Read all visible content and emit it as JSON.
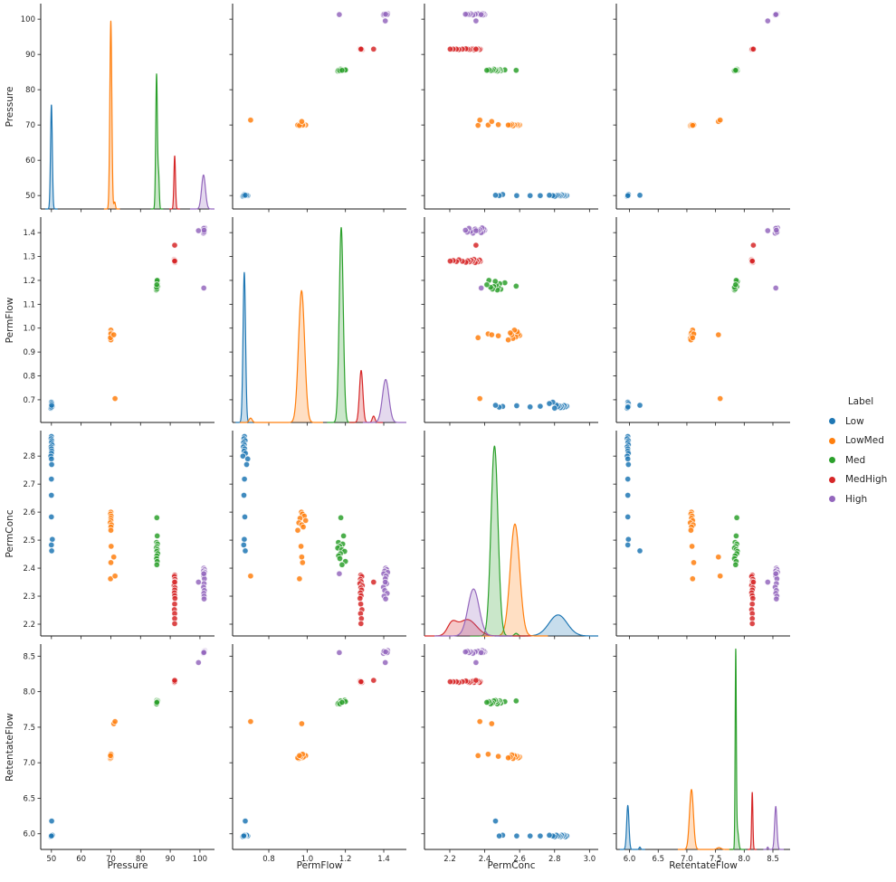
{
  "figure": {
    "background": "#ffffff"
  },
  "legend": {
    "title": "Label",
    "entries": [
      {
        "label": "Low",
        "color": "#1f77b4"
      },
      {
        "label": "LowMed",
        "color": "#ff7f0e"
      },
      {
        "label": "Med",
        "color": "#2ca02c"
      },
      {
        "label": "MedHigh",
        "color": "#d62728"
      },
      {
        "label": "High",
        "color": "#9467bd"
      }
    ]
  },
  "chart_data": {
    "type": "scatter",
    "subtype": "pairplot-scatter-matrix",
    "diagonal": "kde",
    "hue": "Label",
    "grid": false,
    "legend_position": "right-center",
    "variables": [
      "Pressure",
      "PermFlow",
      "PermConc",
      "RetentateFlow"
    ],
    "axes": [
      {
        "name": "Pressure",
        "col_range": [
          46.4,
          104.9
        ],
        "row_range": [
          46.2,
          104.4
        ],
        "col_ticks": {
          "values": [
            50,
            60,
            70,
            80,
            90,
            100
          ],
          "labels": [
            "50",
            "60",
            "70",
            "80",
            "90",
            "100"
          ]
        },
        "row_ticks": {
          "values": [
            50,
            60,
            70,
            80,
            90,
            100
          ],
          "labels": [
            "50",
            "60",
            "70",
            "80",
            "90",
            "100"
          ]
        }
      },
      {
        "name": "PermFlow",
        "col_range": [
          0.611,
          1.518
        ],
        "row_range": [
          0.605,
          1.465
        ],
        "col_ticks": {
          "values": [
            0.8,
            1.0,
            1.2,
            1.4
          ],
          "labels": [
            "0.8",
            "1.0",
            "1.2",
            "1.4"
          ]
        },
        "row_ticks": {
          "values": [
            0.7,
            0.8,
            0.9,
            1.0,
            1.1,
            1.2,
            1.3,
            1.4
          ],
          "labels": [
            "0.7",
            "0.8",
            "0.9",
            "1.0",
            "1.1",
            "1.2",
            "1.3",
            "1.4"
          ]
        }
      },
      {
        "name": "PermConc",
        "col_range": [
          2.055,
          3.05
        ],
        "row_range": [
          2.158,
          2.891
        ],
        "col_ticks": {
          "values": [
            2.2,
            2.4,
            2.6,
            2.8,
            3.0
          ],
          "labels": [
            "2.2",
            "2.4",
            "2.6",
            "2.8",
            "3.0"
          ]
        },
        "row_ticks": {
          "values": [
            2.2,
            2.3,
            2.4,
            2.5,
            2.6,
            2.7,
            2.8
          ],
          "labels": [
            "2.2",
            "2.3",
            "2.4",
            "2.5",
            "2.6",
            "2.7",
            "2.8"
          ]
        }
      },
      {
        "name": "RetentateFlow",
        "col_range": [
          5.77,
          8.8
        ],
        "row_range": [
          5.78,
          8.67
        ],
        "col_ticks": {
          "values": [
            6.0,
            6.5,
            7.0,
            7.5,
            8.0,
            8.5
          ],
          "labels": [
            "6.0",
            "6.5",
            "7.0",
            "7.5",
            "8.0",
            "8.5"
          ]
        },
        "row_ticks": {
          "values": [
            6.0,
            6.5,
            7.0,
            7.5,
            8.0,
            8.5
          ],
          "labels": [
            "6.0",
            "6.5",
            "7.0",
            "7.5",
            "8.0",
            "8.5"
          ]
        }
      }
    ],
    "series": [
      {
        "name": "Low",
        "color": "#1f77b4",
        "points": [
          [
            50.0,
            0.673,
            2.87,
            5.97
          ],
          [
            49.9,
            0.67,
            2.862,
            5.96
          ],
          [
            50.1,
            0.676,
            2.855,
            5.98
          ],
          [
            50.0,
            0.668,
            2.848,
            5.97
          ],
          [
            50.2,
            0.672,
            2.84,
            5.98
          ],
          [
            49.9,
            0.667,
            2.833,
            5.96
          ],
          [
            50.0,
            0.674,
            2.826,
            5.97
          ],
          [
            50.1,
            0.671,
            2.818,
            5.97
          ],
          [
            50.0,
            0.678,
            2.81,
            5.98
          ],
          [
            49.8,
            0.665,
            2.8,
            5.96
          ],
          [
            50.0,
            0.69,
            2.79,
            5.97
          ],
          [
            50.1,
            0.684,
            2.77,
            5.98
          ],
          [
            50.0,
            0.673,
            2.718,
            5.97
          ],
          [
            50.0,
            0.67,
            2.66,
            5.97
          ],
          [
            50.0,
            0.675,
            2.583,
            5.97
          ],
          [
            50.3,
            0.672,
            2.503,
            5.98
          ],
          [
            50.0,
            0.669,
            2.483,
            5.97
          ],
          [
            50.1,
            0.677,
            2.462,
            6.18
          ]
        ]
      },
      {
        "name": "LowMed",
        "color": "#ff7f0e",
        "points": [
          [
            70.0,
            0.97,
            2.6,
            7.08
          ],
          [
            69.9,
            0.975,
            2.593,
            7.07
          ],
          [
            70.1,
            0.985,
            2.586,
            7.09
          ],
          [
            70.0,
            0.963,
            2.578,
            7.08
          ],
          [
            70.0,
            0.992,
            2.57,
            7.1
          ],
          [
            69.8,
            0.957,
            2.562,
            7.06
          ],
          [
            70.2,
            0.972,
            2.555,
            7.11
          ],
          [
            70.0,
            0.98,
            2.547,
            7.08
          ],
          [
            70.0,
            0.951,
            2.535,
            7.07
          ],
          [
            70.1,
            0.968,
            2.478,
            7.09
          ],
          [
            70.0,
            0.976,
            2.42,
            7.12
          ],
          [
            69.9,
            0.96,
            2.362,
            7.1
          ],
          [
            71.0,
            0.972,
            2.44,
            7.55
          ],
          [
            71.4,
            0.705,
            2.372,
            7.58
          ]
        ]
      },
      {
        "name": "Med",
        "color": "#2ca02c",
        "points": [
          [
            85.5,
            1.176,
            2.58,
            7.87
          ],
          [
            85.6,
            1.19,
            2.515,
            7.86
          ],
          [
            85.4,
            1.163,
            2.492,
            7.84
          ],
          [
            85.7,
            1.186,
            2.486,
            7.87
          ],
          [
            85.5,
            1.17,
            2.478,
            7.85
          ],
          [
            85.3,
            1.16,
            2.472,
            7.83
          ],
          [
            85.6,
            1.181,
            2.466,
            7.86
          ],
          [
            85.5,
            1.196,
            2.46,
            7.88
          ],
          [
            85.8,
            1.174,
            2.452,
            7.87
          ],
          [
            85.5,
            1.164,
            2.444,
            7.84
          ],
          [
            85.4,
            1.171,
            2.434,
            7.83
          ],
          [
            85.6,
            1.2,
            2.424,
            7.86
          ],
          [
            85.5,
            1.182,
            2.412,
            7.85
          ]
        ]
      },
      {
        "name": "MedHigh",
        "color": "#d62728",
        "points": [
          [
            91.5,
            1.28,
            2.375,
            8.14
          ],
          [
            91.4,
            1.285,
            2.37,
            8.13
          ],
          [
            91.6,
            1.278,
            2.36,
            8.15
          ],
          [
            91.5,
            1.282,
            2.352,
            8.14
          ],
          [
            91.5,
            1.275,
            2.345,
            8.14
          ],
          [
            91.3,
            1.288,
            2.338,
            8.13
          ],
          [
            91.6,
            1.28,
            2.33,
            8.15
          ],
          [
            91.5,
            1.284,
            2.322,
            8.14
          ],
          [
            91.4,
            1.278,
            2.312,
            8.13
          ],
          [
            91.5,
            1.282,
            2.302,
            8.14
          ],
          [
            91.6,
            1.276,
            2.292,
            8.15
          ],
          [
            91.5,
            1.28,
            2.272,
            8.14
          ],
          [
            91.4,
            1.286,
            2.252,
            8.13
          ],
          [
            91.5,
            1.279,
            2.238,
            8.14
          ],
          [
            91.5,
            1.283,
            2.22,
            8.14
          ],
          [
            91.5,
            1.281,
            2.202,
            8.14
          ],
          [
            91.5,
            1.347,
            2.35,
            8.16
          ]
        ]
      },
      {
        "name": "High",
        "color": "#9467bd",
        "points": [
          [
            101.3,
            1.41,
            2.4,
            8.56
          ],
          [
            101.5,
            1.415,
            2.395,
            8.57
          ],
          [
            101.2,
            1.405,
            2.39,
            8.55
          ],
          [
            101.6,
            1.42,
            2.385,
            8.58
          ],
          [
            101.4,
            1.4,
            2.38,
            8.56
          ],
          [
            101.3,
            1.412,
            2.372,
            8.55
          ],
          [
            101.5,
            1.408,
            2.362,
            8.57
          ],
          [
            101.4,
            1.415,
            2.345,
            8.56
          ],
          [
            101.2,
            1.398,
            2.332,
            8.54
          ],
          [
            101.5,
            1.405,
            2.32,
            8.56
          ],
          [
            101.3,
            1.418,
            2.31,
            8.55
          ],
          [
            101.4,
            1.402,
            2.3,
            8.57
          ],
          [
            101.4,
            1.41,
            2.29,
            8.56
          ],
          [
            99.5,
            1.408,
            2.35,
            8.41
          ],
          [
            101.3,
            1.168,
            2.38,
            8.55
          ]
        ]
      }
    ],
    "kde": {
      "Pressure": {
        "Low": [
          {
            "c": 50.0,
            "s": 0.3,
            "h": 0.52
          }
        ],
        "LowMed": [
          {
            "c": 70.0,
            "s": 0.33,
            "h": 0.94
          },
          {
            "c": 71.3,
            "s": 0.25,
            "h": 0.035
          }
        ],
        "Med": [
          {
            "c": 85.4,
            "s": 0.28,
            "h": 0.675
          },
          {
            "c": 86.1,
            "s": 0.22,
            "h": 0.16
          }
        ],
        "MedHigh": [
          {
            "c": 91.5,
            "s": 0.26,
            "h": 0.265
          }
        ],
        "High": [
          {
            "c": 101.2,
            "s": 0.65,
            "h": 0.17
          }
        ]
      },
      "PermFlow": {
        "Low": [
          {
            "c": 0.672,
            "s": 0.0065,
            "h": 0.75
          }
        ],
        "LowMed": [
          {
            "c": 0.971,
            "s": 0.016,
            "h": 0.66
          },
          {
            "c": 0.705,
            "s": 0.008,
            "h": 0.022
          }
        ],
        "Med": [
          {
            "c": 1.178,
            "s": 0.0105,
            "h": 0.975
          }
        ],
        "MedHigh": [
          {
            "c": 1.282,
            "s": 0.009,
            "h": 0.26
          },
          {
            "c": 1.347,
            "s": 0.007,
            "h": 0.032
          }
        ],
        "High": [
          {
            "c": 1.41,
            "s": 0.017,
            "h": 0.215
          }
        ]
      },
      "PermConc": {
        "Low": [
          {
            "c": 2.82,
            "s": 0.052,
            "h": 0.105
          }
        ],
        "LowMed": [
          {
            "c": 2.573,
            "s": 0.027,
            "h": 0.56
          }
        ],
        "Med": [
          {
            "c": 2.456,
            "s": 0.02,
            "h": 0.95
          },
          {
            "c": 2.58,
            "s": 0.01,
            "h": 0.013
          }
        ],
        "MedHigh": [
          {
            "c": 2.3,
            "s": 0.052,
            "h": 0.082
          },
          {
            "c": 2.212,
            "s": 0.026,
            "h": 0.055
          }
        ],
        "High": [
          {
            "c": 2.336,
            "s": 0.032,
            "h": 0.235
          }
        ]
      },
      "RetentateFlow": {
        "Low": [
          {
            "c": 5.97,
            "s": 0.02,
            "h": 0.22
          },
          {
            "c": 6.18,
            "s": 0.013,
            "h": 0.012
          }
        ],
        "LowMed": [
          {
            "c": 7.08,
            "s": 0.034,
            "h": 0.3
          },
          {
            "c": 7.56,
            "s": 0.035,
            "h": 0.009
          }
        ],
        "Med": [
          {
            "c": 7.852,
            "s": 0.01,
            "h": 0.965
          },
          {
            "c": 7.88,
            "s": 0.02,
            "h": 0.1
          }
        ],
        "MedHigh": [
          {
            "c": 8.14,
            "s": 0.011,
            "h": 0.285
          }
        ],
        "High": [
          {
            "c": 8.55,
            "s": 0.02,
            "h": 0.215
          },
          {
            "c": 8.41,
            "s": 0.011,
            "h": 0.012
          }
        ]
      }
    }
  }
}
